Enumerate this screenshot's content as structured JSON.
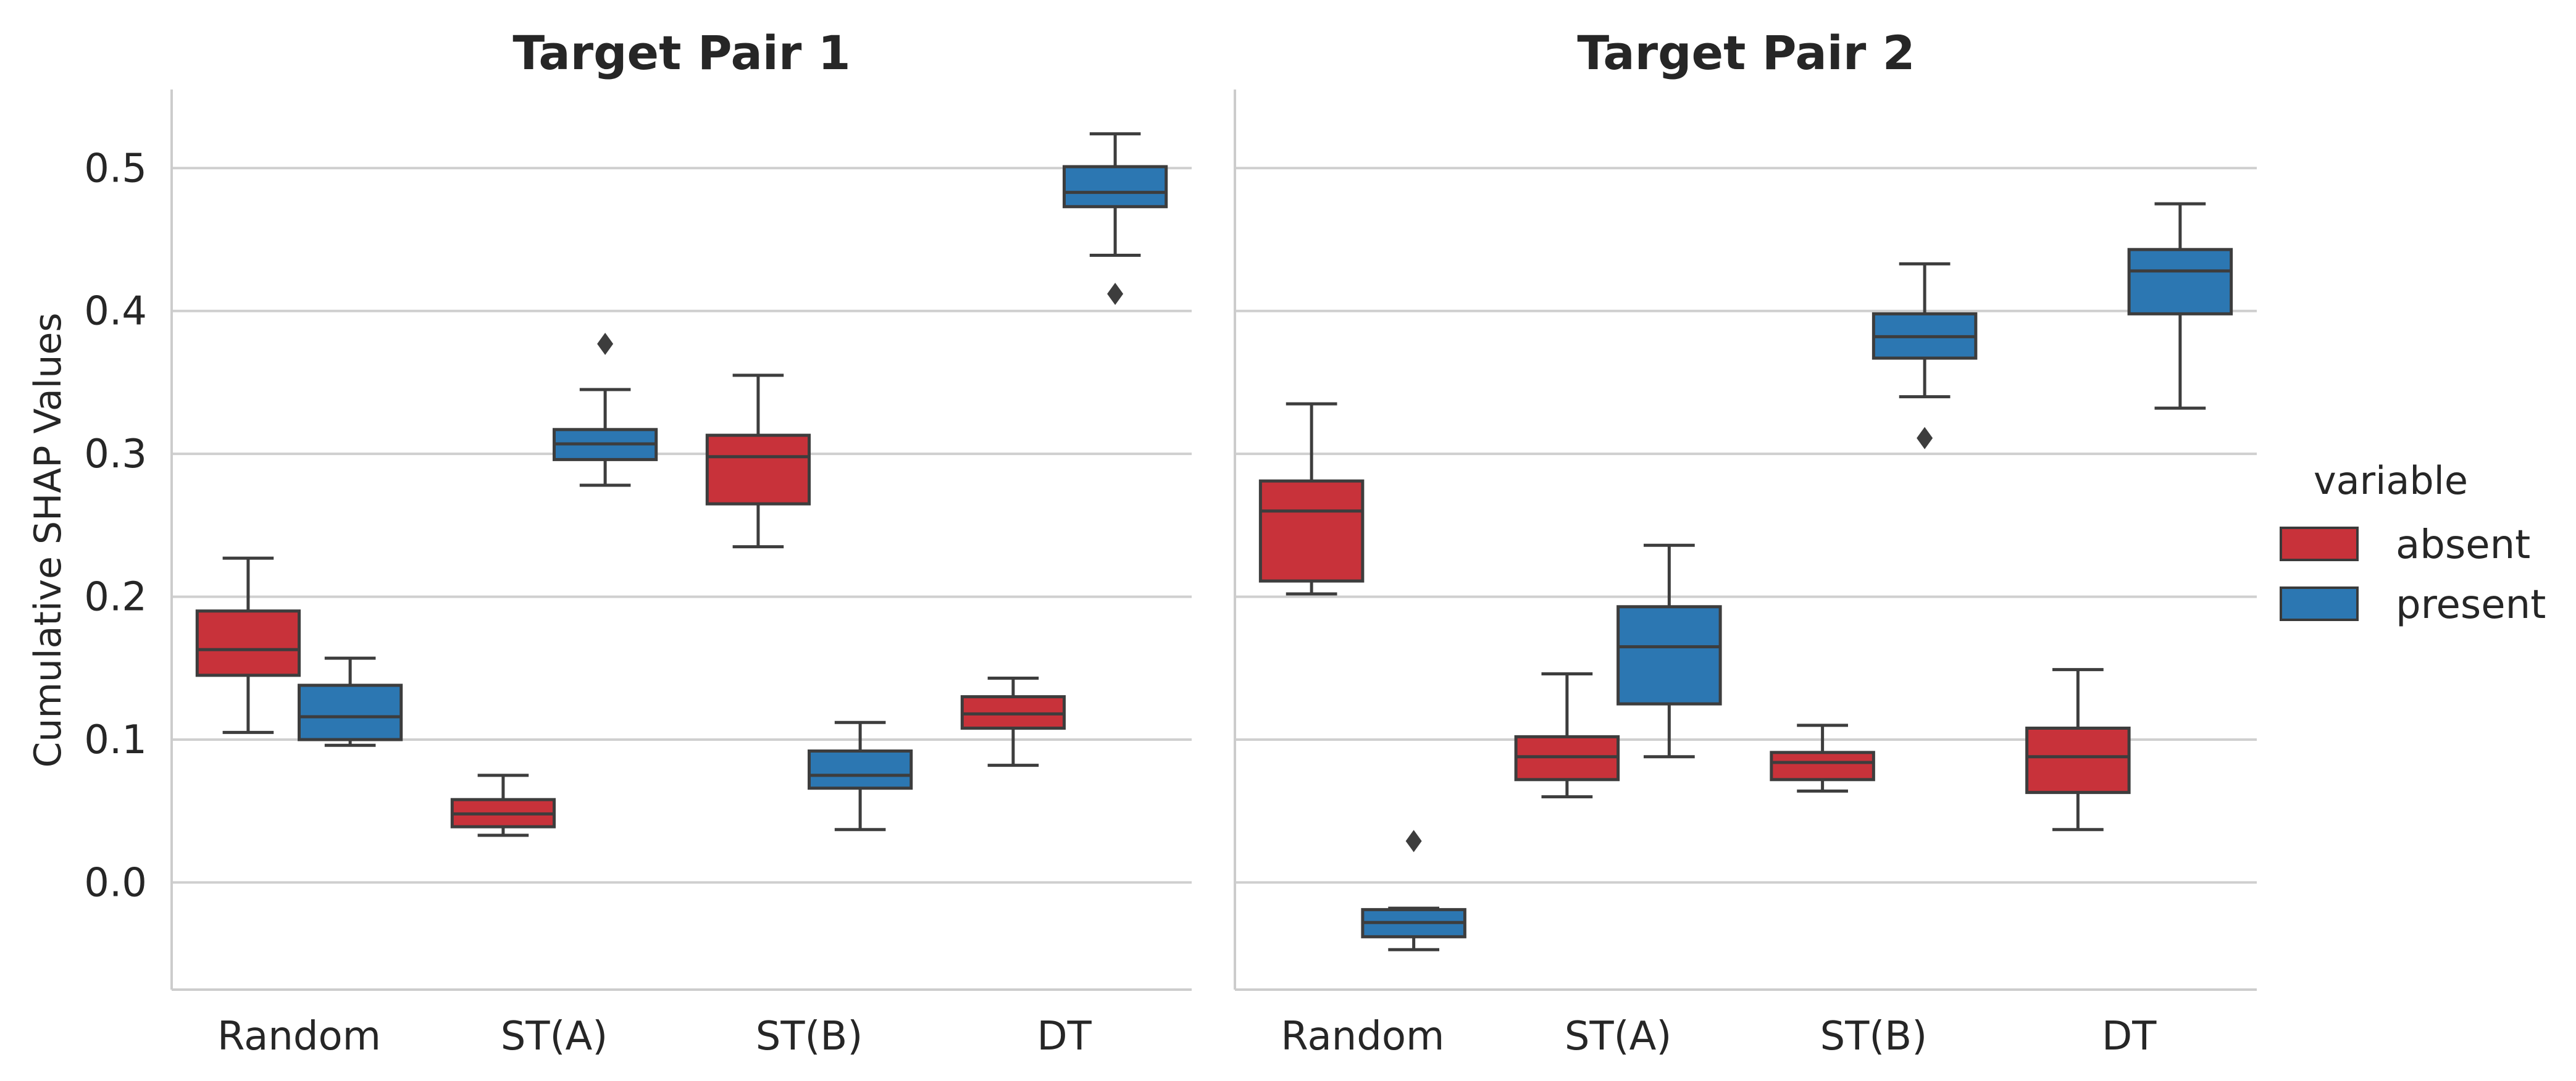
{
  "chart_data": {
    "type": "box",
    "ylabel": "Cumulative SHAP Values",
    "ylim": [
      -0.075,
      0.555
    ],
    "yticks": [
      0.0,
      0.1,
      0.2,
      0.3,
      0.4,
      0.5
    ],
    "ytick_labels": [
      "0.0",
      "0.1",
      "0.2",
      "0.3",
      "0.4",
      "0.5"
    ],
    "categories": [
      "Random",
      "ST(A)",
      "ST(B)",
      "DT"
    ],
    "grid": "horizontal",
    "legend": {
      "title": "variable",
      "position": "right",
      "entries": [
        {
          "name": "absent",
          "color": "#c8323a"
        },
        {
          "name": "present",
          "color": "#2c77b2"
        }
      ]
    },
    "panels": [
      {
        "title": "Target Pair 1",
        "boxes": {
          "absent": [
            {
              "min": 0.105,
              "q1": 0.145,
              "median": 0.163,
              "q3": 0.19,
              "max": 0.227,
              "outliers": []
            },
            {
              "min": 0.033,
              "q1": 0.039,
              "median": 0.048,
              "q3": 0.058,
              "max": 0.075,
              "outliers": []
            },
            {
              "min": 0.235,
              "q1": 0.265,
              "median": 0.298,
              "q3": 0.313,
              "max": 0.355,
              "outliers": []
            },
            {
              "min": 0.082,
              "q1": 0.108,
              "median": 0.118,
              "q3": 0.13,
              "max": 0.143,
              "outliers": []
            }
          ],
          "present": [
            {
              "min": 0.096,
              "q1": 0.1,
              "median": 0.116,
              "q3": 0.138,
              "max": 0.157,
              "outliers": []
            },
            {
              "min": 0.278,
              "q1": 0.296,
              "median": 0.307,
              "q3": 0.317,
              "max": 0.345,
              "outliers": [
                0.377
              ]
            },
            {
              "min": 0.037,
              "q1": 0.066,
              "median": 0.075,
              "q3": 0.092,
              "max": 0.112,
              "outliers": []
            },
            {
              "min": 0.439,
              "q1": 0.473,
              "median": 0.483,
              "q3": 0.501,
              "max": 0.524,
              "outliers": [
                0.412
              ]
            }
          ]
        }
      },
      {
        "title": "Target Pair 2",
        "boxes": {
          "absent": [
            {
              "min": 0.202,
              "q1": 0.211,
              "median": 0.26,
              "q3": 0.281,
              "max": 0.335,
              "outliers": []
            },
            {
              "min": 0.06,
              "q1": 0.072,
              "median": 0.088,
              "q3": 0.102,
              "max": 0.146,
              "outliers": []
            },
            {
              "min": 0.064,
              "q1": 0.072,
              "median": 0.084,
              "q3": 0.091,
              "max": 0.11,
              "outliers": []
            },
            {
              "min": 0.037,
              "q1": 0.063,
              "median": 0.088,
              "q3": 0.108,
              "max": 0.149,
              "outliers": []
            }
          ],
          "present": [
            {
              "min": -0.047,
              "q1": -0.038,
              "median": -0.028,
              "q3": -0.019,
              "max": -0.018,
              "outliers": [
                0.029
              ]
            },
            {
              "min": 0.088,
              "q1": 0.125,
              "median": 0.165,
              "q3": 0.193,
              "max": 0.236,
              "outliers": []
            },
            {
              "min": 0.34,
              "q1": 0.367,
              "median": 0.382,
              "q3": 0.398,
              "max": 0.433,
              "outliers": [
                0.311
              ]
            },
            {
              "min": 0.332,
              "q1": 0.398,
              "median": 0.428,
              "q3": 0.443,
              "max": 0.475,
              "outliers": []
            }
          ]
        }
      }
    ]
  }
}
